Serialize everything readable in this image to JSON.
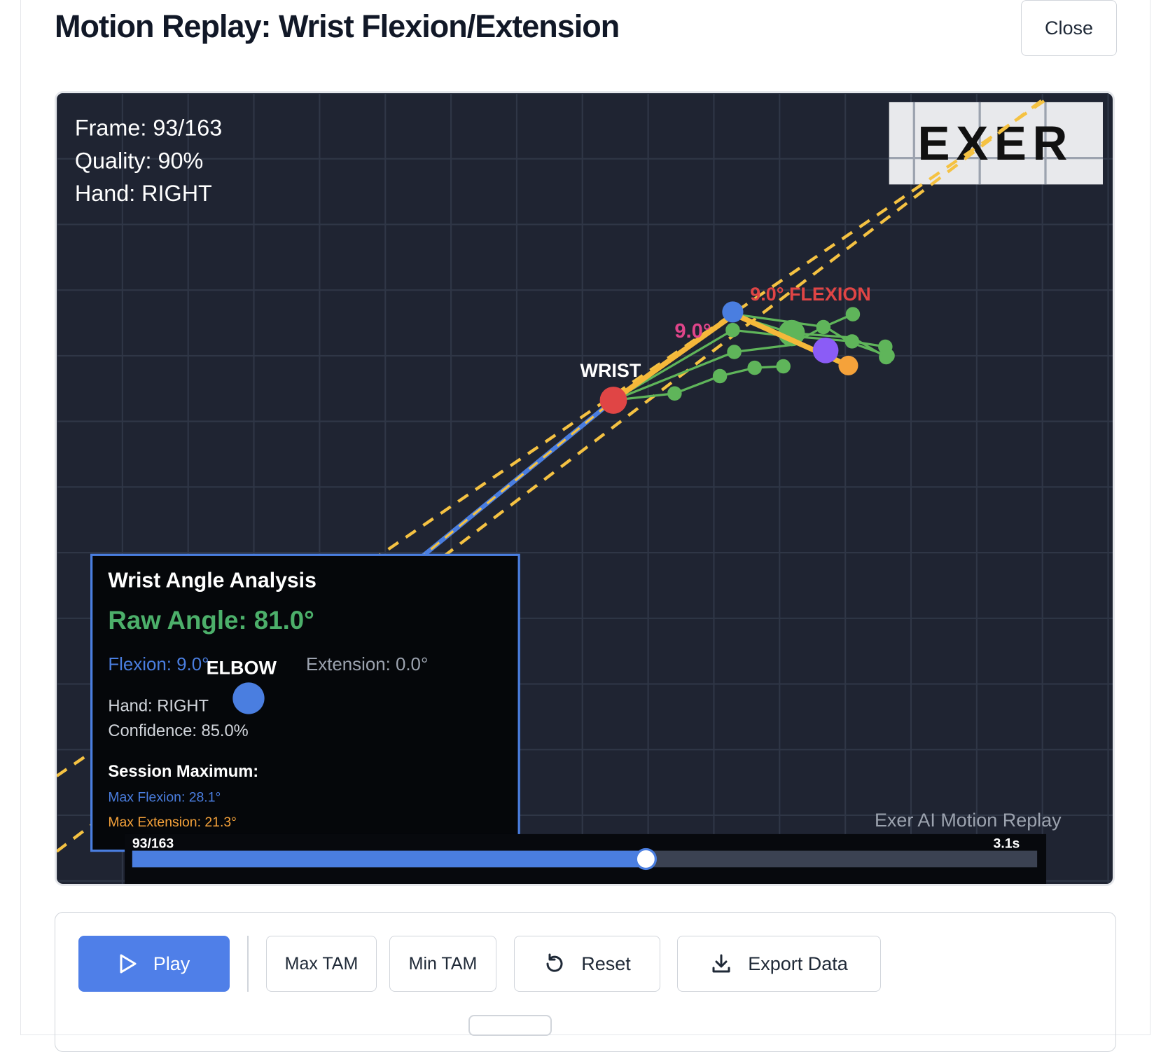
{
  "header": {
    "title": "Motion Replay: Wrist Flexion/Extension",
    "close": "Close"
  },
  "overlay": {
    "frame": "Frame: 93/163",
    "quality": "Quality: 90%",
    "hand": "Hand: RIGHT",
    "logo": "EXER",
    "wrist_label": "WRIST",
    "elbow_label": "ELBOW",
    "flexion_label": "9.0° FLEXION",
    "angle_label": "9.0°",
    "watermark": "Exer AI Motion Replay"
  },
  "analysis": {
    "title": "Wrist Angle Analysis",
    "raw_angle": "Raw Angle: 81.0°",
    "flexion": "Flexion: 9.0°",
    "extension": "Extension: 0.0°",
    "hand": "Hand: RIGHT",
    "confidence": "Confidence: 85.0%",
    "session_title": "Session Maximum:",
    "max_flexion": "Max Flexion: 28.1°",
    "max_extension": "Max Extension: 21.3°"
  },
  "timeline": {
    "position": "93/163",
    "time": "3.1s"
  },
  "controls": {
    "play": "Play",
    "max_tam": "Max TAM",
    "min_tam": "Min TAM",
    "reset": "Reset",
    "export": "Export Data"
  }
}
